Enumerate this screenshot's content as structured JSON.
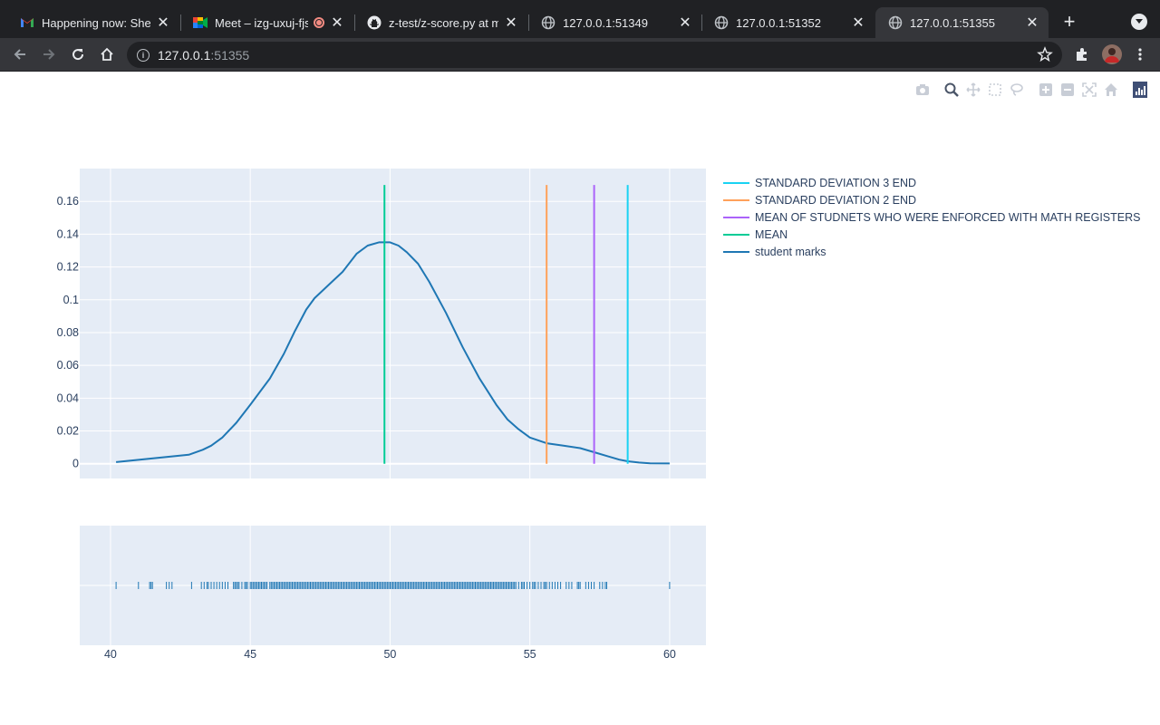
{
  "browser": {
    "tabs": [
      {
        "title": "Happening now: Shekh",
        "icon": "gmail-icon",
        "active": false
      },
      {
        "title": "Meet – izg-uxuj-fjs",
        "icon": "meet-icon",
        "active": false,
        "recording": true
      },
      {
        "title": "z-test/z-score.py at m",
        "icon": "github-icon",
        "active": false
      },
      {
        "title": "127.0.0.1:51349",
        "icon": "globe-icon",
        "active": false
      },
      {
        "title": "127.0.0.1:51352",
        "icon": "globe-icon",
        "active": false
      },
      {
        "title": "127.0.0.1:51355",
        "icon": "globe-icon",
        "active": true
      }
    ],
    "close_glyph": "✕",
    "new_tab_glyph": "+",
    "url_host": "127.0.0.1",
    "url_port": ":51355"
  },
  "colors": {
    "kde": "#1f77b4",
    "mean": "#00cc96",
    "math_mean": "#ab63fa",
    "sd2": "#ffa15a",
    "sd3": "#19d3f3",
    "plot_bg": "#e5ecf6",
    "grid": "#ffffff",
    "tick_text": "#2a3f5f"
  },
  "legend": [
    {
      "label": "STANDARD DEVIATION 3 END",
      "color": "#19d3f3"
    },
    {
      "label": "STANDARD DEVIATION 2 END",
      "color": "#ffa15a"
    },
    {
      "label": "MEAN OF STUDNETS WHO WERE ENFORCED WITH MATH REGISTERS",
      "color": "#ab63fa"
    },
    {
      "label": "MEAN",
      "color": "#00cc96"
    },
    {
      "label": "student marks",
      "color": "#1f77b4"
    }
  ],
  "chart_data": {
    "type": "line",
    "title": "",
    "xlabel": "",
    "ylabel": "",
    "xlim": [
      38.9,
      61.3
    ],
    "ylim": [
      -0.009,
      0.18
    ],
    "x_ticks": [
      40,
      45,
      50,
      55,
      60
    ],
    "x_tick_labels": [
      "40",
      "45",
      "50",
      "55",
      "60"
    ],
    "y_ticks": [
      0,
      0.02,
      0.04,
      0.06,
      0.08,
      0.1,
      0.12,
      0.14,
      0.16
    ],
    "y_tick_labels": [
      "0",
      "0.02",
      "0.04",
      "0.06",
      "0.08",
      "0.1",
      "0.12",
      "0.14",
      "0.16"
    ],
    "grid": true,
    "legend_position": "right",
    "series": [
      {
        "name": "student marks",
        "x": [
          40.2,
          42.8,
          43.3,
          43.6,
          44.0,
          44.5,
          45.0,
          45.7,
          46.2,
          46.6,
          47.0,
          47.3,
          47.8,
          48.3,
          48.8,
          49.2,
          49.6,
          50.0,
          50.3,
          50.6,
          51.0,
          51.4,
          52.0,
          52.6,
          53.2,
          53.8,
          54.2,
          54.6,
          55.0,
          55.6,
          56.2,
          56.8,
          57.3,
          57.8,
          58.2,
          58.5,
          58.9,
          59.3,
          60.0
        ],
        "y": [
          0.001,
          0.0055,
          0.0085,
          0.011,
          0.016,
          0.025,
          0.036,
          0.052,
          0.067,
          0.081,
          0.094,
          0.101,
          0.109,
          0.117,
          0.128,
          0.133,
          0.135,
          0.135,
          0.133,
          0.129,
          0.122,
          0.111,
          0.092,
          0.071,
          0.052,
          0.036,
          0.027,
          0.021,
          0.016,
          0.0125,
          0.011,
          0.0095,
          0.007,
          0.0045,
          0.0025,
          0.0015,
          0.0007,
          0.0003,
          0.0002
        ]
      }
    ],
    "vlines": [
      {
        "name": "MEAN",
        "x": 49.8,
        "y0": 0,
        "y1": 0.17
      },
      {
        "name": "STANDARD DEVIATION 2 END",
        "x": 55.6,
        "y0": 0,
        "y1": 0.17
      },
      {
        "name": "MEAN OF STUDNETS WHO WERE ENFORCED WITH MATH REGISTERS",
        "x": 57.3,
        "y0": 0,
        "y1": 0.17
      },
      {
        "name": "STANDARD DEVIATION 3 END",
        "x": 58.5,
        "y0": 0,
        "y1": 0.17
      }
    ],
    "rug": [
      40.2,
      41.0,
      41.4,
      41.45,
      41.5,
      42.0,
      42.1,
      42.2,
      42.9,
      43.25,
      43.35,
      43.45,
      43.5,
      43.6,
      43.7,
      43.8,
      43.9,
      44.0,
      44.1,
      44.2,
      44.4,
      44.45,
      44.5,
      44.55,
      44.6,
      44.7,
      44.8,
      44.85,
      44.9,
      45.0,
      45.05,
      45.1,
      45.15,
      45.2,
      45.25,
      45.3,
      45.35,
      45.4,
      45.45,
      45.5,
      45.55,
      45.6,
      45.7,
      45.75,
      45.8,
      45.85,
      45.9,
      45.95,
      46.0,
      46.05,
      46.1,
      46.15,
      46.2,
      46.25,
      46.3,
      46.35,
      46.4,
      46.45,
      46.5,
      46.55,
      46.6,
      46.65,
      46.7,
      46.75,
      46.8,
      46.85,
      46.9,
      46.95,
      47.0,
      47.05,
      47.1,
      47.15,
      47.2,
      47.25,
      47.3,
      47.35,
      47.4,
      47.45,
      47.5,
      47.55,
      47.6,
      47.65,
      47.7,
      47.75,
      47.8,
      47.85,
      47.9,
      47.95,
      48.0,
      48.05,
      48.1,
      48.15,
      48.2,
      48.25,
      48.3,
      48.35,
      48.4,
      48.45,
      48.5,
      48.55,
      48.6,
      48.65,
      48.7,
      48.75,
      48.8,
      48.85,
      48.9,
      48.95,
      49.0,
      49.05,
      49.1,
      49.15,
      49.2,
      49.25,
      49.3,
      49.35,
      49.4,
      49.45,
      49.5,
      49.55,
      49.6,
      49.65,
      49.7,
      49.75,
      49.8,
      49.85,
      49.9,
      49.95,
      50.0,
      50.05,
      50.1,
      50.15,
      50.2,
      50.25,
      50.3,
      50.35,
      50.4,
      50.45,
      50.5,
      50.55,
      50.6,
      50.65,
      50.7,
      50.75,
      50.8,
      50.85,
      50.9,
      50.95,
      51.0,
      51.05,
      51.1,
      51.15,
      51.2,
      51.25,
      51.3,
      51.35,
      51.4,
      51.45,
      51.5,
      51.55,
      51.6,
      51.65,
      51.7,
      51.75,
      51.8,
      51.85,
      51.9,
      51.95,
      52.0,
      52.05,
      52.1,
      52.15,
      52.2,
      52.25,
      52.3,
      52.35,
      52.4,
      52.45,
      52.5,
      52.55,
      52.6,
      52.65,
      52.7,
      52.75,
      52.8,
      52.85,
      52.9,
      52.95,
      53.0,
      53.05,
      53.1,
      53.15,
      53.2,
      53.25,
      53.3,
      53.35,
      53.4,
      53.45,
      53.5,
      53.55,
      53.6,
      53.65,
      53.7,
      53.75,
      53.8,
      53.85,
      53.9,
      53.95,
      54.0,
      54.05,
      54.1,
      54.15,
      54.2,
      54.25,
      54.3,
      54.35,
      54.4,
      54.45,
      54.5,
      54.6,
      54.7,
      54.75,
      54.8,
      54.9,
      55.0,
      55.1,
      55.15,
      55.2,
      55.3,
      55.4,
      55.5,
      55.55,
      55.6,
      55.7,
      55.8,
      55.9,
      56.0,
      56.1,
      56.3,
      56.4,
      56.5,
      56.7,
      56.75,
      56.8,
      57.0,
      57.1,
      57.2,
      57.3,
      57.5,
      57.6,
      57.7,
      57.75,
      60.0
    ]
  }
}
